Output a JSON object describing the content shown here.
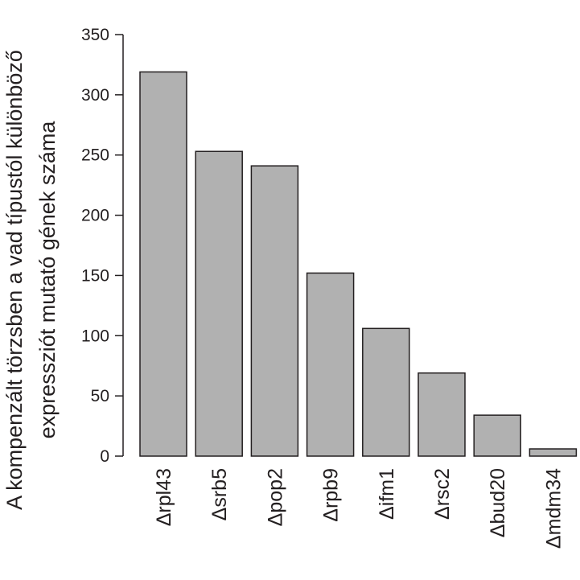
{
  "chart_data": {
    "type": "bar",
    "categories": [
      "Δrpl43",
      "Δsrb5",
      "Δpop2",
      "Δrpb9",
      "Δifm1",
      "Δrsc2",
      "Δbud20",
      "Δmdm34"
    ],
    "values": [
      319,
      253,
      241,
      152,
      106,
      69,
      34,
      6
    ],
    "ylabel_lines": [
      "A kompenzált törzsben a vad típustól különböző",
      "expressziót mutató gének száma"
    ],
    "xlabel": "",
    "ylim": [
      0,
      350
    ],
    "yticks": [
      0,
      50,
      100,
      150,
      200,
      250,
      300,
      350
    ],
    "bar_color": "#b1b1b1",
    "bar_stroke": "#231f20",
    "grid": false,
    "legend": "none"
  }
}
